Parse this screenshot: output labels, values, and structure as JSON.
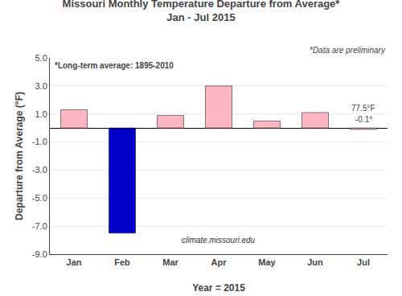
{
  "chart_data": {
    "type": "bar",
    "title": "Missouri Monthly Temperature Departure from Average*",
    "subtitle": "Jan - Jul 2015",
    "xlabel": "Year = 2015",
    "ylabel": "Departure from Average (°F)",
    "categories": [
      "Jan",
      "Feb",
      "Mar",
      "Apr",
      "May",
      "Jun",
      "Jul"
    ],
    "values": [
      1.3,
      -7.5,
      0.9,
      3.0,
      0.5,
      1.1,
      -0.1
    ],
    "colors": [
      "#FFB6C1",
      "#0000CD",
      "#FFB6C1",
      "#FFB6C1",
      "#FFB6C1",
      "#FFB6C1",
      "#FFB6C1"
    ],
    "ylim": [
      -9.0,
      5.0
    ],
    "yticks": [
      {
        "value": -9.0,
        "label": "-9.0"
      },
      {
        "value": -7.0,
        "label": "-7.0"
      },
      {
        "value": -5.0,
        "label": "-5.0"
      },
      {
        "value": -3.0,
        "label": "-3.0"
      },
      {
        "value": -1.0,
        "label": "-1.0"
      },
      {
        "value": 1.0,
        "label": "1.0"
      },
      {
        "value": 3.0,
        "label": "3.0"
      },
      {
        "value": 5.0,
        "label": "5.0"
      }
    ],
    "grid": true,
    "annotations": [
      "*Long-term average: 1895-2010",
      "*Data are preliminary",
      "climate.missouri.edu",
      "77.5°F",
      "-0.1°"
    ]
  }
}
